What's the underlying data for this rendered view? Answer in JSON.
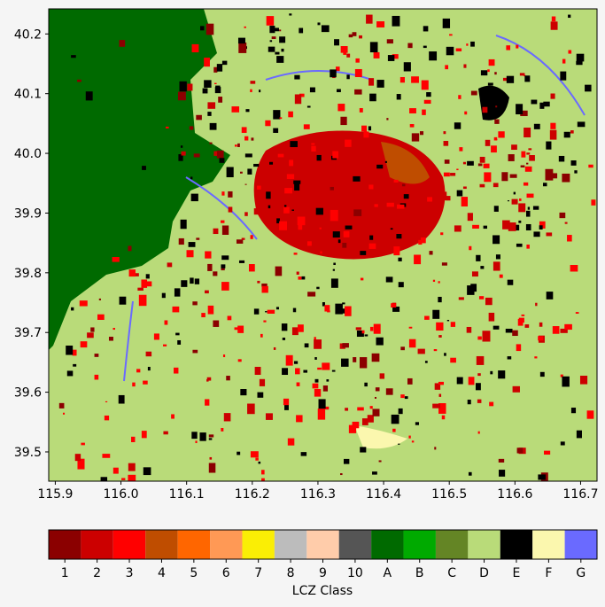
{
  "map": {
    "xlim": [
      115.89,
      116.725
    ],
    "ylim": [
      39.451,
      40.242
    ],
    "xticks": [
      115.9,
      {
        "value": 116.0,
        "label": "116.0"
      },
      116.1,
      116.2,
      116.3,
      116.4,
      116.5,
      116.6,
      116.7
    ],
    "yticks": [
      39.5,
      39.6,
      39.7,
      39.8,
      39.9,
      {
        "value": 40.0,
        "label": "40.0"
      },
      40.1,
      40.2
    ]
  },
  "colorbar": {
    "label": "LCZ Class",
    "classes": [
      {
        "label": "1",
        "color": "#8b0000"
      },
      {
        "label": "2",
        "color": "#cc0000"
      },
      {
        "label": "3",
        "color": "#ff0000"
      },
      {
        "label": "4",
        "color": "#bf4d00"
      },
      {
        "label": "5",
        "color": "#ff6600"
      },
      {
        "label": "6",
        "color": "#ff9955"
      },
      {
        "label": "7",
        "color": "#faee05"
      },
      {
        "label": "8",
        "color": "#bcbcbc"
      },
      {
        "label": "9",
        "color": "#ffccaa"
      },
      {
        "label": "10",
        "color": "#555555"
      },
      {
        "label": "A",
        "color": "#006a00"
      },
      {
        "label": "B",
        "color": "#00aa00"
      },
      {
        "label": "C",
        "color": "#648525"
      },
      {
        "label": "D",
        "color": "#b9db79"
      },
      {
        "label": "E",
        "color": "#000000"
      },
      {
        "label": "F",
        "color": "#fbf7ae"
      },
      {
        "label": "G",
        "color": "#6a6aff"
      }
    ]
  }
}
